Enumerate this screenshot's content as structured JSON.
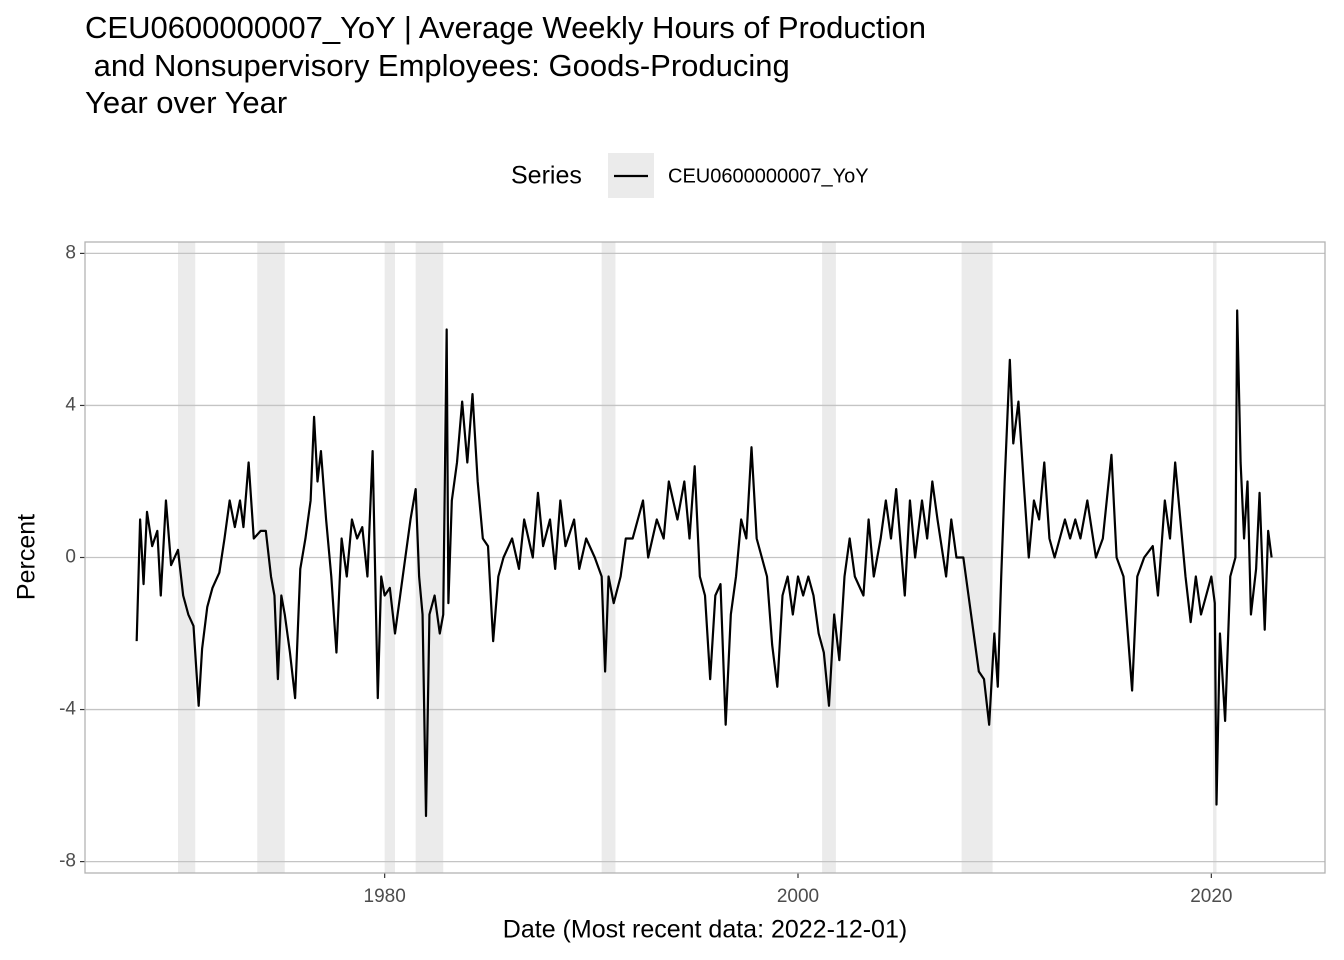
{
  "chart_data": {
    "type": "line",
    "title": [
      "CEU0600000007_YoY | Average Weekly Hours of Production",
      " and Nonsupervisory Employees: Goods-Producing",
      "Year over Year"
    ],
    "x_label": "Date (Most recent data: 2022-12-01)",
    "y_label": "Percent",
    "legend_title": "Series",
    "grid": true,
    "xlim": [
      1965.5,
      2025.5
    ],
    "xticks": [
      1980,
      2000,
      2020
    ],
    "ylim": [
      -8.3,
      8.3
    ],
    "yticks": [
      8,
      4,
      0,
      -4,
      -8
    ],
    "shaded_regions": [
      [
        "1970-01",
        "1970-11"
      ],
      [
        "1973-11",
        "1975-03"
      ],
      [
        "1980-01",
        "1980-07"
      ],
      [
        "1981-07",
        "1982-11"
      ],
      [
        "1990-07",
        "1991-03"
      ],
      [
        "2001-03",
        "2001-11"
      ],
      [
        "2007-12",
        "2009-06"
      ],
      [
        "2020-02",
        "2020-04"
      ]
    ],
    "x": [
      "1968-01",
      "1968-03",
      "1968-05",
      "1968-07",
      "1968-10",
      "1969-01",
      "1969-03",
      "1969-06",
      "1969-09",
      "1970-01",
      "1970-04",
      "1970-07",
      "1970-10",
      "1971-01",
      "1971-03",
      "1971-06",
      "1971-09",
      "1972-01",
      "1972-04",
      "1972-07",
      "1972-10",
      "1973-01",
      "1973-03",
      "1973-06",
      "1973-09",
      "1974-01",
      "1974-04",
      "1974-07",
      "1974-09",
      "1974-11",
      "1975-01",
      "1975-03",
      "1975-06",
      "1975-09",
      "1975-12",
      "1976-03",
      "1976-06",
      "1976-08",
      "1976-10",
      "1976-12",
      "1977-03",
      "1977-06",
      "1977-09",
      "1977-12",
      "1978-03",
      "1978-06",
      "1978-09",
      "1978-12",
      "1979-03",
      "1979-06",
      "1979-09",
      "1979-11",
      "1980-01",
      "1980-04",
      "1980-07",
      "1980-10",
      "1981-01",
      "1981-04",
      "1981-07",
      "1981-09",
      "1981-11",
      "1982-01",
      "1982-03",
      "1982-06",
      "1982-09",
      "1982-11",
      "1983-01",
      "1983-02",
      "1983-04",
      "1983-07",
      "1983-10",
      "1984-01",
      "1984-04",
      "1984-07",
      "1984-10",
      "1985-01",
      "1985-04",
      "1985-07",
      "1985-10",
      "1986-03",
      "1986-07",
      "1986-10",
      "1987-03",
      "1987-06",
      "1987-09",
      "1988-01",
      "1988-04",
      "1988-07",
      "1988-10",
      "1989-03",
      "1989-06",
      "1989-10",
      "1990-03",
      "1990-07",
      "1990-09",
      "1990-11",
      "1991-02",
      "1991-06",
      "1991-09",
      "1992-01",
      "1992-04",
      "1992-07",
      "1992-10",
      "1993-03",
      "1993-07",
      "1993-10",
      "1994-03",
      "1994-07",
      "1994-10",
      "1995-01",
      "1995-04",
      "1995-07",
      "1995-10",
      "1996-01",
      "1996-04",
      "1996-07",
      "1996-10",
      "1997-01",
      "1997-04",
      "1997-07",
      "1997-10",
      "1998-01",
      "1998-04",
      "1998-07",
      "1998-10",
      "1999-01",
      "1999-04",
      "1999-07",
      "1999-10",
      "2000-01",
      "2000-04",
      "2000-07",
      "2000-10",
      "2001-01",
      "2001-04",
      "2001-07",
      "2001-10",
      "2002-01",
      "2002-04",
      "2002-07",
      "2002-10",
      "2003-03",
      "2003-06",
      "2003-09",
      "2004-01",
      "2004-04",
      "2004-07",
      "2004-10",
      "2005-03",
      "2005-06",
      "2005-09",
      "2006-01",
      "2006-04",
      "2006-07",
      "2006-10",
      "2007-03",
      "2007-06",
      "2007-09",
      "2008-01",
      "2008-04",
      "2008-07",
      "2008-10",
      "2009-01",
      "2009-04",
      "2009-07",
      "2009-09",
      "2009-11",
      "2010-01",
      "2010-04",
      "2010-06",
      "2010-09",
      "2010-12",
      "2011-03",
      "2011-06",
      "2011-09",
      "2011-12",
      "2012-03",
      "2012-06",
      "2012-09",
      "2012-12",
      "2013-03",
      "2013-06",
      "2013-09",
      "2014-01",
      "2014-06",
      "2014-10",
      "2015-03",
      "2015-06",
      "2015-10",
      "2016-03",
      "2016-06",
      "2016-10",
      "2017-03",
      "2017-06",
      "2017-10",
      "2018-01",
      "2018-04",
      "2018-07",
      "2018-10",
      "2019-01",
      "2019-04",
      "2019-07",
      "2019-10",
      "2020-01",
      "2020-03",
      "2020-04",
      "2020-06",
      "2020-09",
      "2020-12",
      "2021-03",
      "2021-04",
      "2021-06",
      "2021-08",
      "2021-10",
      "2021-12",
      "2022-03",
      "2022-05",
      "2022-08",
      "2022-10",
      "2022-12"
    ],
    "series": [
      {
        "name": "CEU0600000007_YoY",
        "color": "#000000",
        "values": [
          -2.2,
          1.0,
          -0.7,
          1.2,
          0.3,
          0.7,
          -1.0,
          1.5,
          -0.2,
          0.2,
          -1.0,
          -1.5,
          -1.8,
          -3.9,
          -2.4,
          -1.3,
          -0.8,
          -0.4,
          0.5,
          1.5,
          0.8,
          1.5,
          0.8,
          2.5,
          0.5,
          0.7,
          0.7,
          -0.5,
          -1.0,
          -3.2,
          -1.0,
          -1.5,
          -2.5,
          -3.7,
          -0.3,
          0.5,
          1.5,
          3.7,
          2.0,
          2.8,
          1.0,
          -0.5,
          -2.5,
          0.5,
          -0.5,
          1.0,
          0.5,
          0.8,
          -0.5,
          2.8,
          -3.7,
          -0.5,
          -1.0,
          -0.8,
          -2.0,
          -1.0,
          0.0,
          1.0,
          1.8,
          -0.5,
          -1.5,
          -6.8,
          -1.5,
          -1.0,
          -2.0,
          -1.5,
          6.0,
          -1.2,
          1.5,
          2.5,
          4.1,
          2.5,
          4.3,
          2.0,
          0.5,
          0.3,
          -2.2,
          -0.5,
          0.0,
          0.5,
          -0.3,
          1.0,
          0.0,
          1.7,
          0.3,
          1.0,
          -0.3,
          1.5,
          0.3,
          1.0,
          -0.3,
          0.5,
          0.0,
          -0.5,
          -3.0,
          -0.5,
          -1.2,
          -0.5,
          0.5,
          0.5,
          1.0,
          1.5,
          0.0,
          1.0,
          0.5,
          2.0,
          1.0,
          2.0,
          0.5,
          2.4,
          -0.5,
          -1.0,
          -3.2,
          -1.0,
          -0.7,
          -4.4,
          -1.5,
          -0.5,
          1.0,
          0.5,
          2.9,
          0.5,
          0.0,
          -0.5,
          -2.3,
          -3.4,
          -1.0,
          -0.5,
          -1.5,
          -0.5,
          -1.0,
          -0.5,
          -1.0,
          -2.0,
          -2.5,
          -3.9,
          -1.5,
          -2.7,
          -0.5,
          0.5,
          -0.5,
          -1.0,
          1.0,
          -0.5,
          0.5,
          1.5,
          0.5,
          1.8,
          -1.0,
          1.5,
          0.0,
          1.5,
          0.5,
          2.0,
          1.0,
          -0.5,
          1.0,
          0.0,
          0.0,
          -1.0,
          -2.0,
          -3.0,
          -3.2,
          -4.4,
          -2.0,
          -3.4,
          -0.5,
          2.0,
          5.2,
          3.0,
          4.1,
          2.0,
          0.0,
          1.5,
          1.0,
          2.5,
          0.5,
          0.0,
          0.5,
          1.0,
          0.5,
          1.0,
          0.5,
          1.5,
          0.0,
          0.5,
          2.7,
          0.0,
          -0.5,
          -3.5,
          -0.5,
          0.0,
          0.3,
          -1.0,
          1.5,
          0.5,
          2.5,
          1.0,
          -0.5,
          -1.7,
          -0.5,
          -1.5,
          -1.0,
          -0.5,
          -1.2,
          -6.5,
          -2.0,
          -4.3,
          -0.5,
          0.0,
          6.5,
          2.5,
          0.5,
          2.0,
          -1.5,
          -0.3,
          1.7,
          -1.9,
          0.7,
          0.0
        ]
      }
    ]
  }
}
